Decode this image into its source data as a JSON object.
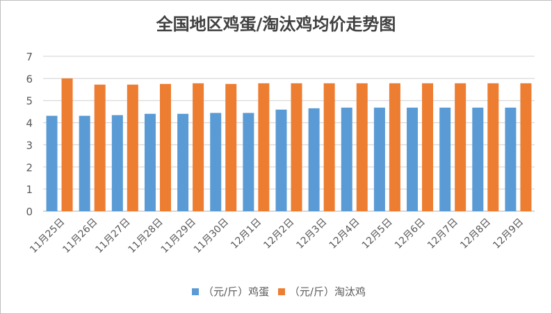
{
  "chart_data": {
    "type": "bar",
    "title": "全国地区鸡蛋/淘汰鸡均价走势图",
    "xlabel": "",
    "ylabel": "",
    "ylim": [
      0,
      7
    ],
    "yticks": [
      0,
      1,
      2,
      3,
      4,
      5,
      6,
      7
    ],
    "grid": true,
    "legend_position": "bottom",
    "categories": [
      "11月25日",
      "11月26日",
      "11月27日",
      "11月28日",
      "11月29日",
      "11月30日",
      "12月1日",
      "12月2日",
      "12月3日",
      "12月4日",
      "12月5日",
      "12月6日",
      "12月7日",
      "12月8日",
      "12月9日"
    ],
    "series": [
      {
        "name": "（元/斤）鸡蛋",
        "color": "#5b9bd5",
        "values": [
          4.31,
          4.31,
          4.34,
          4.4,
          4.4,
          4.44,
          4.44,
          4.59,
          4.65,
          4.68,
          4.68,
          4.68,
          4.68,
          4.68,
          4.68
        ]
      },
      {
        "name": "（元/斤）淘汰鸡",
        "color": "#ed7d31",
        "values": [
          6.0,
          5.72,
          5.72,
          5.75,
          5.78,
          5.75,
          5.78,
          5.78,
          5.78,
          5.78,
          5.78,
          5.78,
          5.78,
          5.78,
          5.78
        ]
      }
    ]
  }
}
